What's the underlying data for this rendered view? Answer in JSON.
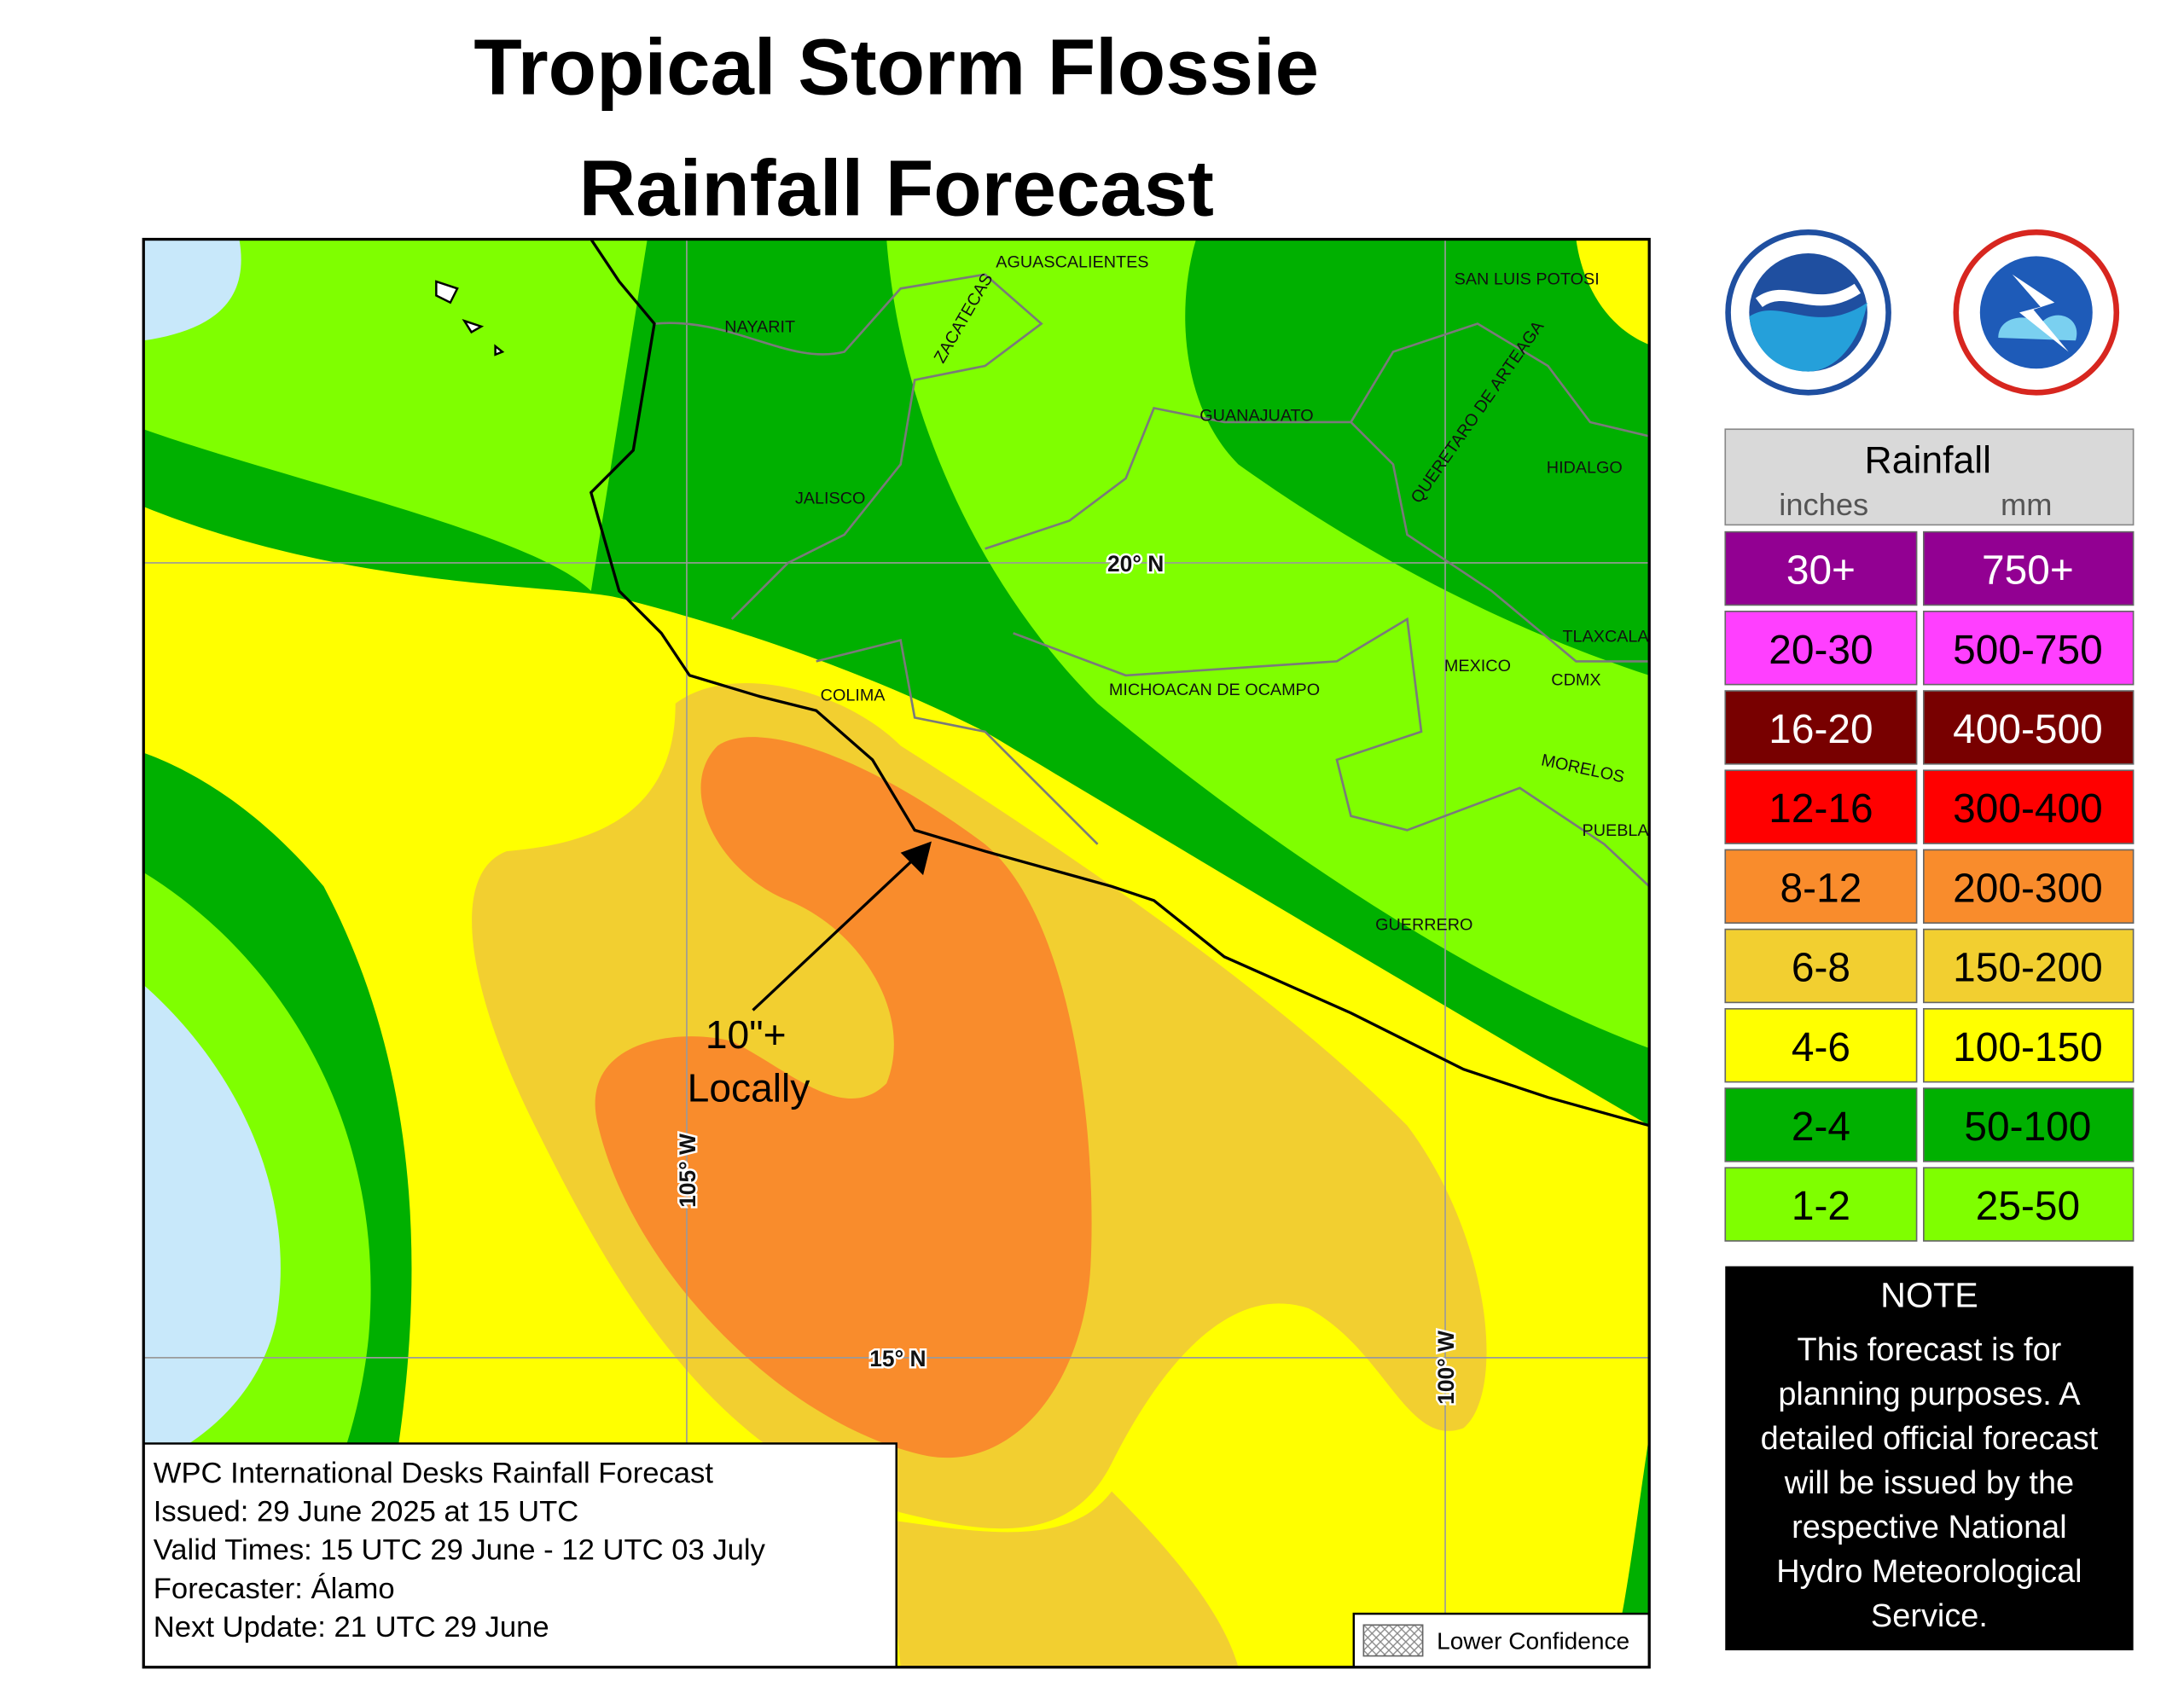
{
  "title": [
    "Tropical Storm Flossie",
    "Rainfall Forecast"
  ],
  "map_labels": [
    "AGUASCALIENTES",
    "SAN LUIS POTOSI",
    "NAYARIT",
    "ZACATECAS",
    "GUANAJUATO",
    "QUERETARO DE ARTEAGA",
    "HIDALGO",
    "JALISCO",
    "COLIMA",
    "MICHOACAN DE OCAMPO",
    "MEXICO",
    "TLAXCALA",
    "CDMX",
    "MORELOS",
    "PUEBLA",
    "GUERRERO"
  ],
  "grid_labels": [
    "20° N",
    "15° N",
    "105° W",
    "100° W"
  ],
  "annotation": [
    "10\"+",
    "Locally"
  ],
  "legend": {
    "title": "Rainfall",
    "units": [
      "inches",
      "mm"
    ],
    "rows": [
      {
        "inches": "30+",
        "mm": "750+",
        "color": "#920092"
      },
      {
        "inches": "20-30",
        "mm": "500-750",
        "color": "#ff3fff"
      },
      {
        "inches": "16-20",
        "mm": "400-500",
        "color": "#780000"
      },
      {
        "inches": "12-16",
        "mm": "300-400",
        "color": "#ff0000"
      },
      {
        "inches": "8-12",
        "mm": "200-300",
        "color": "#f98c2c"
      },
      {
        "inches": "6-8",
        "mm": "150-200",
        "color": "#f2cf30"
      },
      {
        "inches": "4-6",
        "mm": "100-150",
        "color": "#ffff00"
      },
      {
        "inches": "2-4",
        "mm": "50-100",
        "color": "#00b000"
      },
      {
        "inches": "1-2",
        "mm": "25-50",
        "color": "#7fff00"
      }
    ]
  },
  "note": {
    "title": "NOTE",
    "lines": [
      "This forecast is for",
      "planning purposes. A",
      "detailed official forecast",
      "will be issued by the",
      "respective National",
      "Hydro Meteorological",
      "Service."
    ]
  },
  "info": [
    "WPC International Desks Rainfall Forecast",
    "Issued: 29 June 2025 at 15 UTC",
    "Valid Times: 15 UTC 29 June - 12 UTC 03 July",
    "Forecaster: Álamo",
    "Next Update: 21 UTC 29 June"
  ],
  "lower_confidence": "Lower Confidence"
}
